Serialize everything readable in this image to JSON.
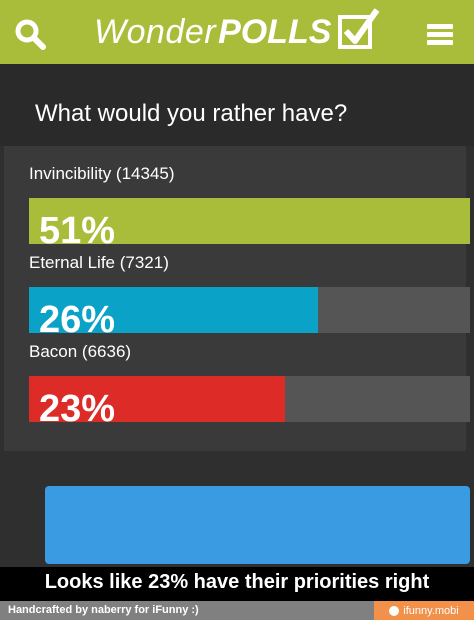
{
  "header": {
    "logo_wonder": "Wonder",
    "logo_polls": "POLLS",
    "accent_color": "#aabd3a"
  },
  "question": "What would you rather have?",
  "options": [
    {
      "label": "Invincibility (14345)",
      "percent_label": "51%",
      "fill_fraction": 1.0,
      "color": "#aabd3a"
    },
    {
      "label": "Eternal Life (7321)",
      "percent_label": "26%",
      "fill_fraction": 0.655,
      "color": "#0ba2c8"
    },
    {
      "label": "Bacon (6636)",
      "percent_label": "23%",
      "fill_fraction": 0.58,
      "color": "#dd2b27"
    }
  ],
  "caption": "Looks like 23% have their priorities right",
  "footer": {
    "credit": "Handcrafted by naberry for iFunny :)",
    "site": "ifunny.mobi"
  }
}
